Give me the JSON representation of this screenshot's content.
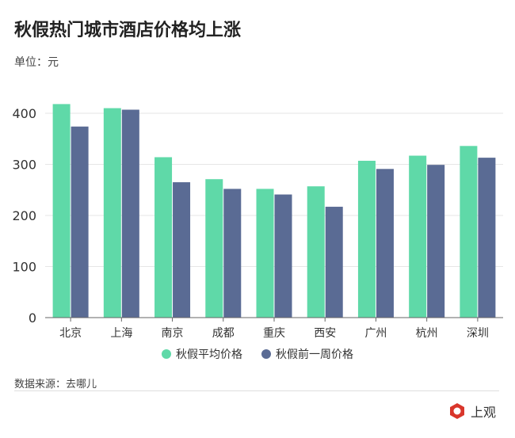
{
  "title": "秋假热门城市酒店价格均上涨",
  "unit": "单位：元",
  "source": "数据来源：去哪儿",
  "logo": "上观 Shanghai Observer",
  "chart_data": {
    "type": "bar",
    "categories": [
      "北京",
      "上海",
      "南京",
      "成都",
      "重庆",
      "西安",
      "广州",
      "杭州",
      "深圳"
    ],
    "series": [
      {
        "name": "秋假平均价格",
        "color": "#5fd9a8",
        "values": [
          418,
          410,
          314,
          271,
          252,
          257,
          307,
          317,
          336
        ]
      },
      {
        "name": "秋假前一周价格",
        "color": "#5a6b94",
        "values": [
          374,
          407,
          265,
          252,
          241,
          217,
          291,
          299,
          313
        ]
      }
    ],
    "yticks": [
      0,
      100,
      200,
      300,
      400
    ],
    "ylim": [
      0,
      420
    ],
    "grid": true,
    "legend": "bottom"
  }
}
